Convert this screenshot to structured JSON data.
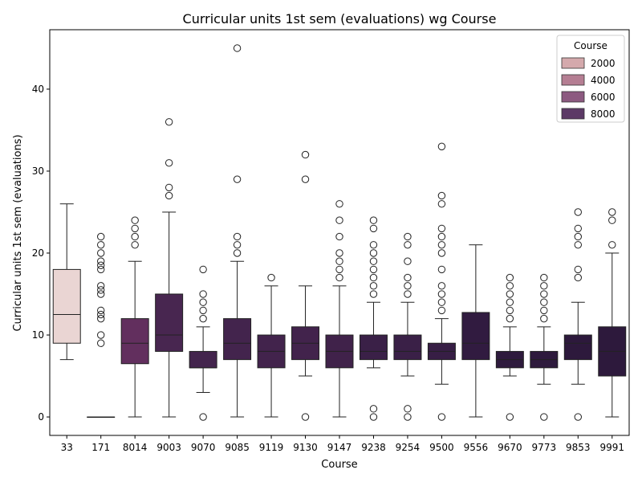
{
  "chart_data": {
    "type": "box",
    "title": "Curricular units 1st sem (evaluations) wg Course",
    "xlabel": "Course",
    "ylabel": "Curricular units 1st sem (evaluations)",
    "ylim": [
      -2.25,
      47.25
    ],
    "yticks": [
      0,
      10,
      20,
      30,
      40
    ],
    "legend": {
      "title": "Course",
      "placement": "top-right",
      "entries": [
        {
          "label": "2000",
          "color": "#d4a9ac"
        },
        {
          "label": "4000",
          "color": "#b57e93"
        },
        {
          "label": "6000",
          "color": "#8c5a80"
        },
        {
          "label": "8000",
          "color": "#5c3a66"
        }
      ]
    },
    "boxes": [
      {
        "category": "33",
        "color": "#ead5d3",
        "q1": 9,
        "median": 12.5,
        "q3": 18,
        "whisker_low": 7,
        "whisker_high": 26,
        "outliers": []
      },
      {
        "category": "171",
        "color": "#e9d3d1",
        "q1": 0,
        "median": 0,
        "q3": 0,
        "whisker_low": 0,
        "whisker_high": 0,
        "outliers": [
          9,
          10,
          12,
          12.5,
          13,
          15,
          15.5,
          16,
          18,
          18.5,
          19,
          20,
          21,
          22
        ]
      },
      {
        "category": "8014",
        "color": "#622f5e",
        "q1": 6.5,
        "median": 9,
        "q3": 12,
        "whisker_low": 0,
        "whisker_high": 19,
        "outliers": [
          21,
          22,
          23,
          24
        ]
      },
      {
        "category": "9003",
        "color": "#482650",
        "q1": 8,
        "median": 10,
        "q3": 15,
        "whisker_low": 0,
        "whisker_high": 25,
        "outliers": [
          27,
          28,
          31,
          36
        ]
      },
      {
        "category": "9070",
        "color": "#43244d",
        "q1": 6,
        "median": 6,
        "q3": 8,
        "whisker_low": 3,
        "whisker_high": 11,
        "outliers": [
          0,
          12,
          13,
          14,
          15,
          18
        ]
      },
      {
        "category": "9085",
        "color": "#43244d",
        "q1": 7,
        "median": 9,
        "q3": 12,
        "whisker_low": 0,
        "whisker_high": 19,
        "outliers": [
          20,
          21,
          22,
          29,
          45
        ]
      },
      {
        "category": "9119",
        "color": "#42234c",
        "q1": 6,
        "median": 8,
        "q3": 10,
        "whisker_low": 0,
        "whisker_high": 16,
        "outliers": [
          17
        ]
      },
      {
        "category": "9130",
        "color": "#42234c",
        "q1": 7,
        "median": 9,
        "q3": 11,
        "whisker_low": 5,
        "whisker_high": 16,
        "outliers": [
          0,
          29,
          32
        ]
      },
      {
        "category": "9147",
        "color": "#40224a",
        "q1": 6,
        "median": 8,
        "q3": 10,
        "whisker_low": 0,
        "whisker_high": 16,
        "outliers": [
          17,
          18,
          19,
          20,
          22,
          24,
          26
        ]
      },
      {
        "category": "9238",
        "color": "#3a2047",
        "q1": 7,
        "median": 8,
        "q3": 10,
        "whisker_low": 6,
        "whisker_high": 14,
        "outliers": [
          0,
          1,
          15,
          16,
          17,
          18,
          19,
          20,
          21,
          23,
          24
        ]
      },
      {
        "category": "9254",
        "color": "#3a2047",
        "q1": 7,
        "median": 8,
        "q3": 10,
        "whisker_low": 5,
        "whisker_high": 14,
        "outliers": [
          0,
          1,
          15,
          16,
          17,
          19,
          21,
          22
        ]
      },
      {
        "category": "9500",
        "color": "#371e45",
        "q1": 7,
        "median": 8,
        "q3": 9,
        "whisker_low": 4,
        "whisker_high": 12,
        "outliers": [
          0,
          13,
          14,
          15,
          16,
          18,
          20,
          21,
          22,
          23,
          26,
          27,
          33
        ]
      },
      {
        "category": "9556",
        "color": "#311b40",
        "q1": 7,
        "median": 9,
        "q3": 12.75,
        "whisker_low": 0,
        "whisker_high": 21,
        "outliers": []
      },
      {
        "category": "9670",
        "color": "#2e1a3d",
        "q1": 6,
        "median": 7,
        "q3": 8,
        "whisker_low": 5,
        "whisker_high": 11,
        "outliers": [
          0,
          12,
          13,
          14,
          15,
          16,
          17
        ]
      },
      {
        "category": "9773",
        "color": "#2e1a3d",
        "q1": 6,
        "median": 7,
        "q3": 8,
        "whisker_low": 4,
        "whisker_high": 11,
        "outliers": [
          0,
          12,
          13,
          14,
          15,
          16,
          17
        ]
      },
      {
        "category": "9853",
        "color": "#2d193c",
        "q1": 7,
        "median": 9,
        "q3": 10,
        "whisker_low": 4,
        "whisker_high": 14,
        "outliers": [
          0,
          17,
          18,
          21,
          22,
          23,
          25
        ]
      },
      {
        "category": "9991",
        "color": "#2d193c",
        "q1": 5,
        "median": 8,
        "q3": 11,
        "whisker_low": 0,
        "whisker_high": 20,
        "outliers": [
          21,
          24,
          25
        ]
      }
    ]
  }
}
